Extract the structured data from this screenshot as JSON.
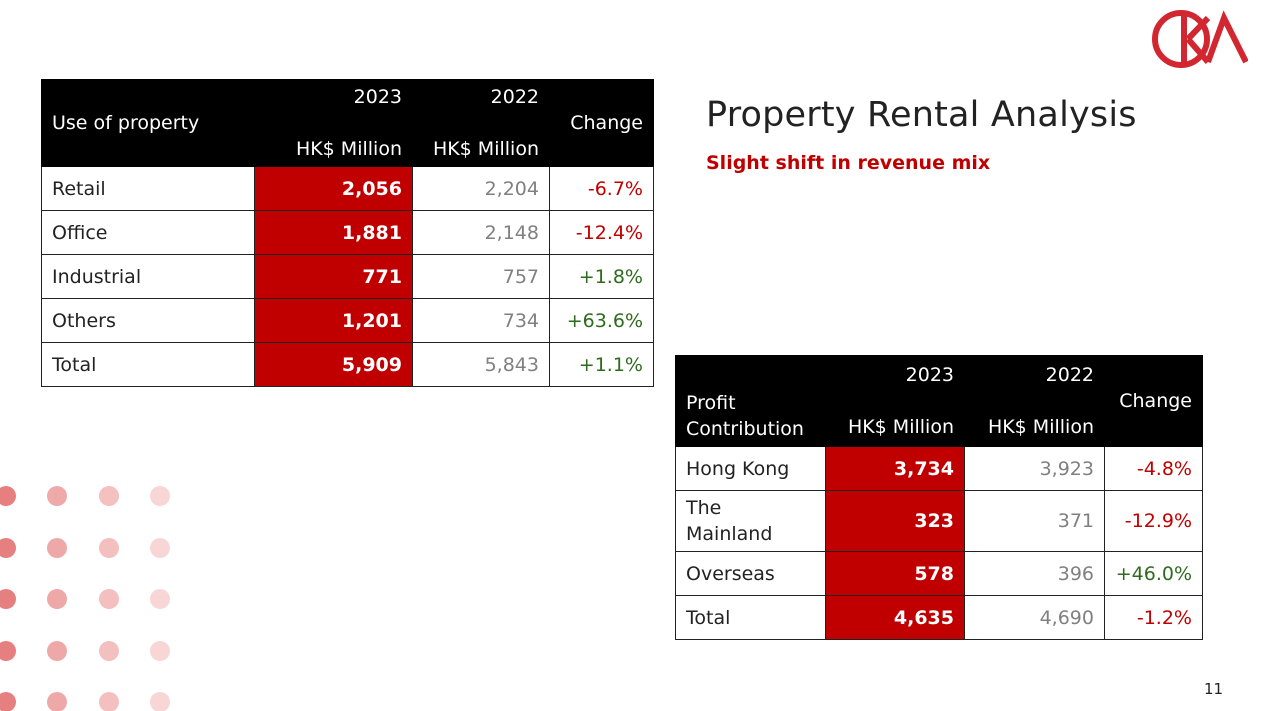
{
  "title": "Property Rental Analysis",
  "subtitle": "Slight shift in revenue mix",
  "page_number": "11",
  "logo": {
    "icon": "ck-asset-logo",
    "color": "#d22630"
  },
  "colors": {
    "accent": "#c00000",
    "header": "#000000",
    "negative": "#c00000",
    "positive": "#2e6b1f",
    "muted": "#808080"
  },
  "property_table": {
    "header": {
      "label": "Use of property",
      "y2023": "2023",
      "y2022": "2022",
      "unit_2023": "HK$ Million",
      "unit_2022": "HK$ Million",
      "change": "Change"
    },
    "rows": [
      {
        "label": "Retail",
        "v2023": "2,056",
        "v2022": "2,204",
        "change": "-6.7%"
      },
      {
        "label": "Office",
        "v2023": "1,881",
        "v2022": "2,148",
        "change": "-12.4%"
      },
      {
        "label": "Industrial",
        "v2023": "771",
        "v2022": "757",
        "change": "+1.8%"
      },
      {
        "label": "Others",
        "v2023": "1,201",
        "v2022": "734",
        "change": "+63.6%"
      },
      {
        "label": "Total",
        "v2023": "5,909",
        "v2022": "5,843",
        "change": "+1.1%"
      }
    ]
  },
  "profit_table": {
    "header": {
      "label_line1": "Profit",
      "label_line2": "Contribution",
      "y2023": "2023",
      "y2022": "2022",
      "unit_2023": "HK$ Million",
      "unit_2022": "HK$ Million",
      "change": "Change"
    },
    "rows": [
      {
        "label": "Hong Kong",
        "v2023": "3,734",
        "v2022": "3,923",
        "change": "-4.8%"
      },
      {
        "label_line1": "The",
        "label_line2": "Mainland",
        "v2023": "323",
        "v2022": "371",
        "change": "-12.9%"
      },
      {
        "label": "Overseas",
        "v2023": "578",
        "v2022": "396",
        "change": "+46.0%"
      },
      {
        "label": "Total",
        "v2023": "4,635",
        "v2022": "4,690",
        "change": "-1.2%"
      }
    ]
  }
}
